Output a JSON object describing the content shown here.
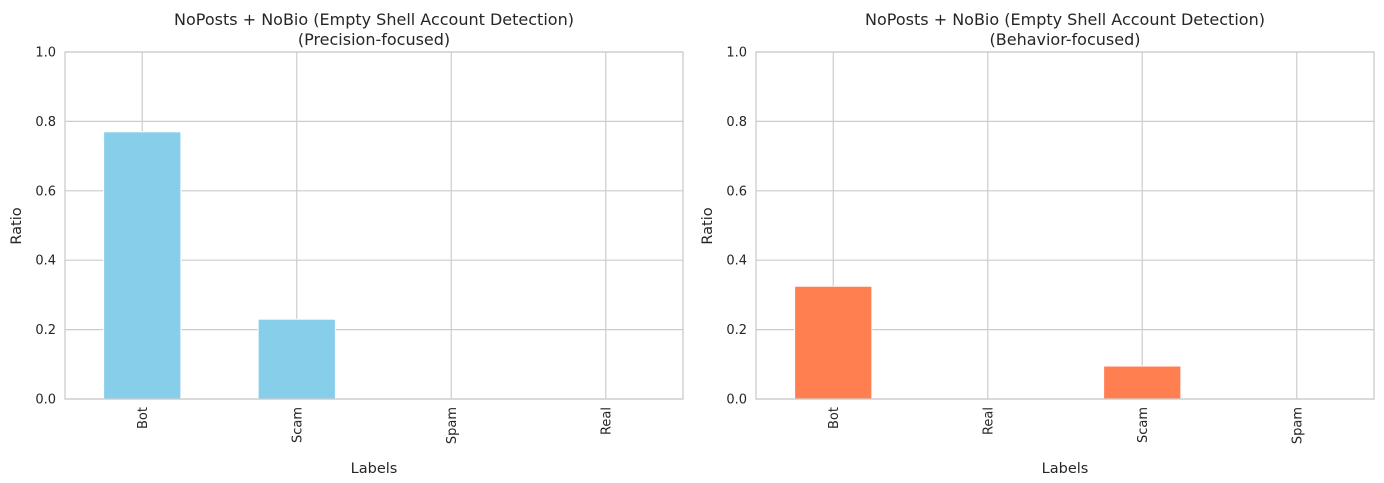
{
  "chart_data": [
    {
      "type": "bar",
      "title": "NoPosts + NoBio (Empty Shell Account Detection)",
      "subtitle": "(Precision-focused)",
      "xlabel": "Labels",
      "ylabel": "Ratio",
      "categories": [
        "Bot",
        "Scam",
        "Spam",
        "Real"
      ],
      "values": [
        0.77,
        0.23,
        0.0,
        0.0
      ],
      "ylim": [
        0,
        1.0
      ],
      "yticks": [
        "0.0",
        "0.2",
        "0.4",
        "0.6",
        "0.8",
        "1.0"
      ],
      "color": "#87CEEB",
      "grid": true
    },
    {
      "type": "bar",
      "title": "NoPosts + NoBio (Empty Shell Account Detection)",
      "subtitle": "(Behavior-focused)",
      "xlabel": "Labels",
      "ylabel": "Ratio",
      "categories": [
        "Bot",
        "Real",
        "Scam",
        "Spam"
      ],
      "values": [
        0.325,
        0.0,
        0.095,
        0.0
      ],
      "ylim": [
        0,
        1.0
      ],
      "yticks": [
        "0.0",
        "0.2",
        "0.4",
        "0.6",
        "0.8",
        "1.0"
      ],
      "color": "#FF7F50",
      "grid": true
    }
  ]
}
